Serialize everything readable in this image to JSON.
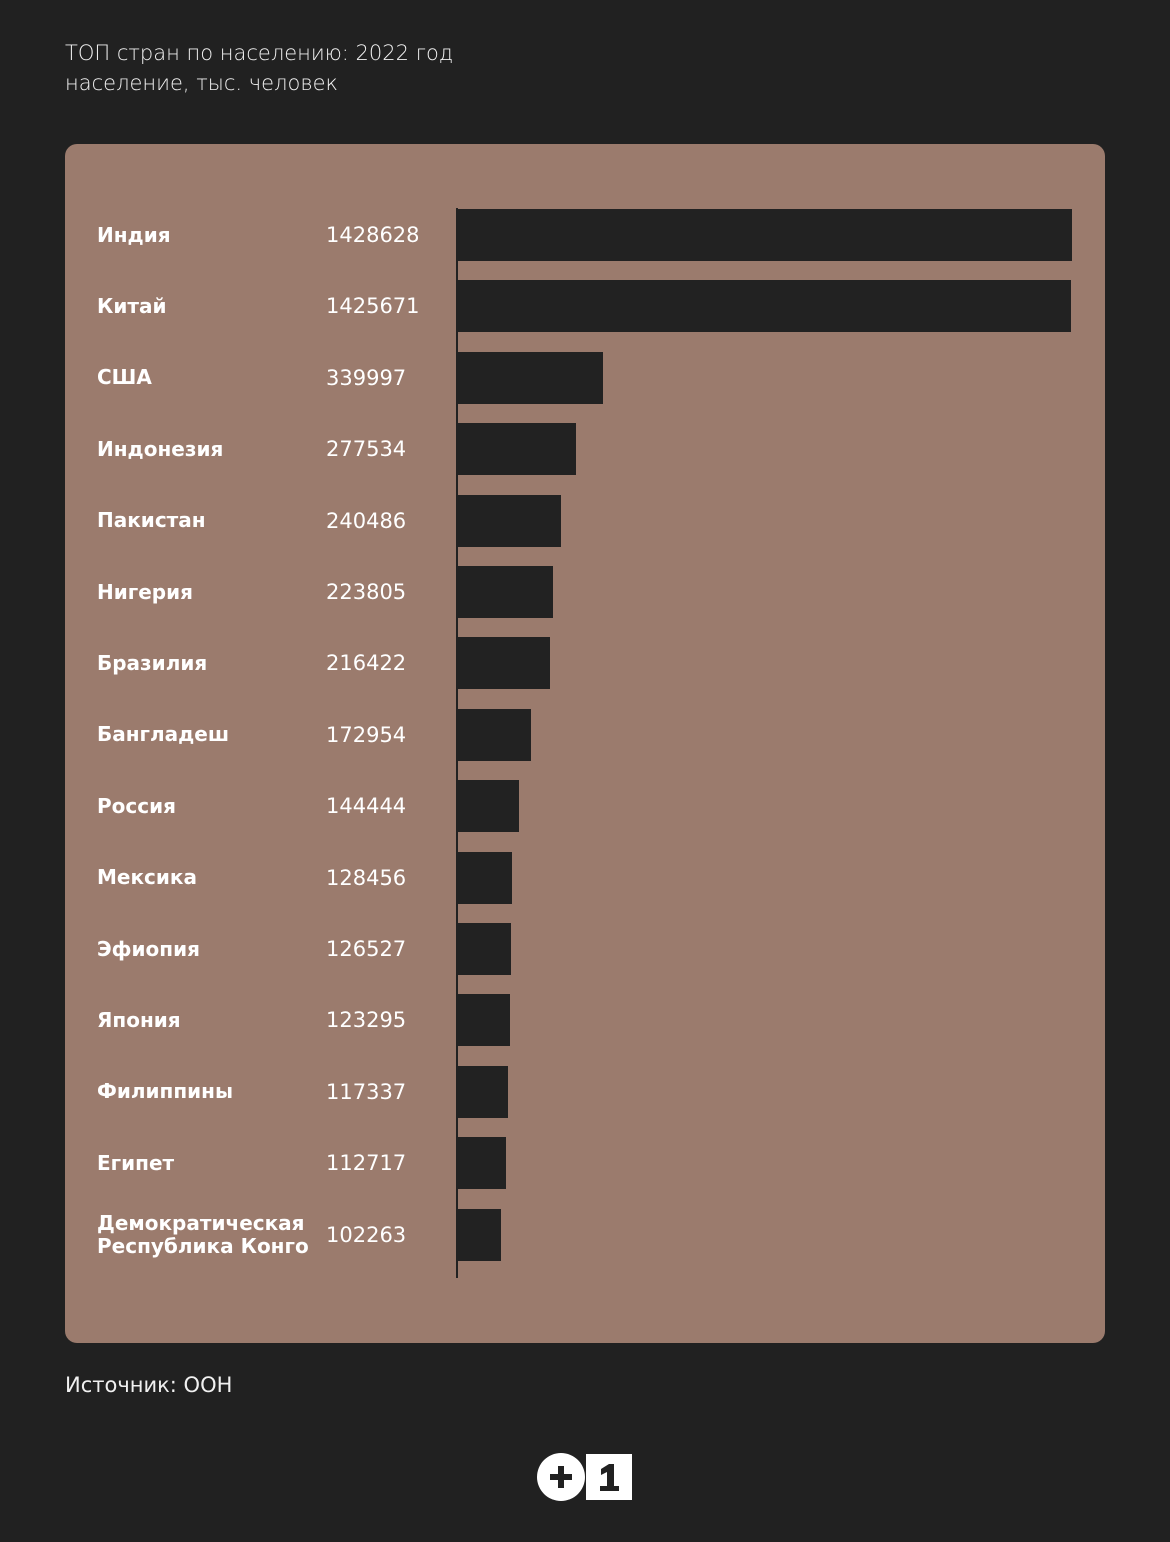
{
  "header": {
    "title": "ТОП стран по населению: 2022 год",
    "subtitle": "население, тыс. человек"
  },
  "source": "Источник: ООН",
  "logo": {
    "text": "+1"
  },
  "colors": {
    "background": "#212121",
    "panel": "#9b7b6d",
    "bar": "#222222"
  },
  "chart_data": {
    "type": "bar",
    "orientation": "horizontal",
    "title": "ТОП стран по населению: 2022 год",
    "ylabel": "население, тыс. человек",
    "categories": [
      "Индия",
      "Китай",
      "США",
      "Индонезия",
      "Пакистан",
      "Нигерия",
      "Бразилия",
      "Бангладеш",
      "Россия",
      "Мексика",
      "Эфиопия",
      "Япония",
      "Филиппины",
      "Египет",
      "Демократическая Республика Конго"
    ],
    "values": [
      1428628,
      1425671,
      339997,
      277534,
      240486,
      223805,
      216422,
      172954,
      144444,
      128456,
      126527,
      123295,
      117337,
      112717,
      102263
    ],
    "value_labels": [
      "1428628",
      "1425671",
      "339997",
      "277534",
      "240486",
      "223805",
      "216422",
      "172954",
      "144444",
      "128456",
      "126527",
      "123295",
      "117337",
      "112717",
      "102263"
    ],
    "xlim": [
      0,
      1428628
    ]
  }
}
